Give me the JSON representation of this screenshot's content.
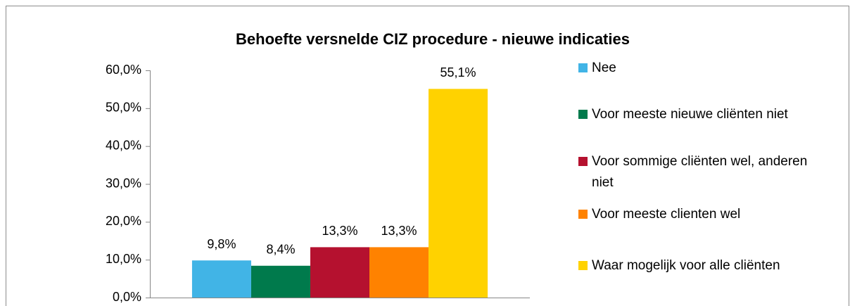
{
  "chart_data": {
    "type": "bar",
    "title": "Behoefte versnelde CIZ procedure - nieuwe indicaties",
    "categories": [
      null
    ],
    "series": [
      {
        "name": "Nee",
        "color": "#41b4e6",
        "values": [
          9.8
        ],
        "value_labels": [
          "9,8%"
        ]
      },
      {
        "name": "Voor meeste nieuwe cliënten niet",
        "color": "#007a4c",
        "values": [
          8.4
        ],
        "value_labels": [
          "8,4%"
        ]
      },
      {
        "name": "Voor sommige cliënten wel, anderen niet",
        "color": "#b5112f",
        "values": [
          13.3
        ],
        "value_labels": [
          "13,3%"
        ]
      },
      {
        "name": "Voor meeste clienten wel",
        "color": "#ff8200",
        "values": [
          13.3
        ],
        "value_labels": [
          "13,3%"
        ]
      },
      {
        "name": "Waar mogelijk voor alle cliënten",
        "color": "#ffd200",
        "values": [
          55.1
        ],
        "value_labels": [
          "55,1%"
        ]
      }
    ],
    "ylim": [
      0,
      60
    ],
    "yticks": [
      {
        "value": 0,
        "label": "0,0%"
      },
      {
        "value": 10,
        "label": "10,0%"
      },
      {
        "value": 20,
        "label": "20,0%"
      },
      {
        "value": 30,
        "label": "30,0%"
      },
      {
        "value": 40,
        "label": "40,0%"
      },
      {
        "value": 50,
        "label": "50,0%"
      },
      {
        "value": 60,
        "label": "60,0%"
      }
    ],
    "grid": false,
    "legend": "right"
  }
}
